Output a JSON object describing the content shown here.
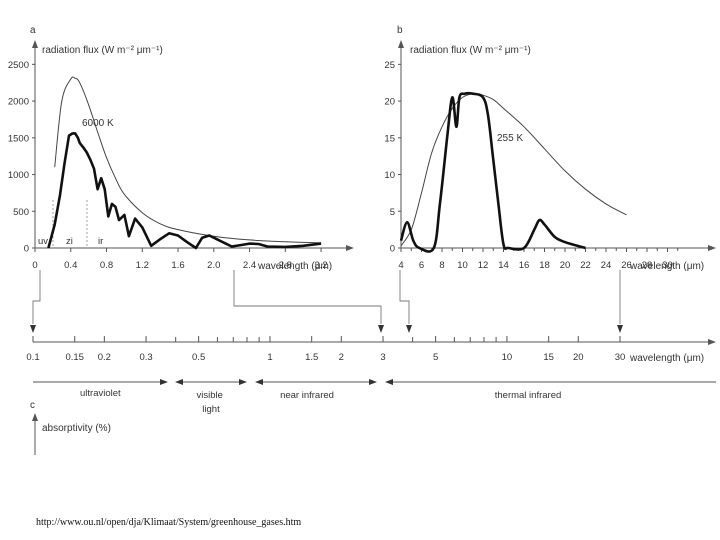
{
  "source_url": "http://www.ou.nl/open/dja/Klimaat/System/greenhouse_gases.htm",
  "chart_data": [
    {
      "panel": "a",
      "type": "line",
      "title": "radiation flux (W m⁻² μm⁻¹)",
      "xlabel": "wavelength (μm)",
      "xlim": [
        0,
        3.3
      ],
      "ylim": [
        0,
        2600
      ],
      "x_ticks": [
        "0",
        "0.4",
        "0.8",
        "1.2",
        "1.6",
        "2.0",
        "2.4",
        "2.8",
        "3.2"
      ],
      "y_ticks": [
        "0",
        "500",
        "1000",
        "1500",
        "2000",
        "2500"
      ],
      "region_labels": [
        "uv",
        "zi",
        "ir"
      ],
      "series": [
        {
          "name": "6000 K",
          "style": "thin",
          "x": [
            0.22,
            0.3,
            0.4,
            0.45,
            0.5,
            0.6,
            0.7,
            0.8,
            0.9,
            1.0,
            1.2,
            1.4,
            1.6,
            2.0,
            2.4,
            2.8,
            3.2
          ],
          "values": [
            1100,
            2000,
            2300,
            2310,
            2250,
            1950,
            1580,
            1230,
            950,
            730,
            480,
            330,
            250,
            160,
            110,
            85,
            70
          ]
        },
        {
          "style": "thick",
          "x": [
            0.15,
            0.22,
            0.28,
            0.33,
            0.38,
            0.42,
            0.45,
            0.48,
            0.5,
            0.54,
            0.58,
            0.62,
            0.66,
            0.7,
            0.74,
            0.78,
            0.82,
            0.86,
            0.9,
            0.94,
            1.0,
            1.05,
            1.12,
            1.2,
            1.3,
            1.4,
            1.5,
            1.6,
            1.7,
            1.8,
            1.87,
            1.95,
            2.05,
            2.2,
            2.3,
            2.4,
            2.5,
            2.6,
            2.8,
            3.0,
            3.2
          ],
          "values": [
            0,
            320,
            720,
            1150,
            1530,
            1560,
            1560,
            1500,
            1430,
            1370,
            1300,
            1200,
            1080,
            800,
            950,
            800,
            430,
            600,
            560,
            380,
            450,
            160,
            400,
            280,
            30,
            120,
            200,
            170,
            80,
            0,
            140,
            170,
            110,
            20,
            40,
            60,
            55,
            20,
            15,
            30,
            60
          ]
        }
      ]
    },
    {
      "panel": "b",
      "type": "line",
      "title": "radiation flux (W m⁻² μm⁻¹)",
      "xlabel": "wavelength (μm)",
      "xlim": [
        4,
        32
      ],
      "ylim": [
        0,
        26
      ],
      "x_ticks": [
        "4",
        "6",
        "8",
        "10",
        "12",
        "14",
        "16",
        "18",
        "20",
        "22",
        "24",
        "26",
        "28",
        "30"
      ],
      "y_ticks": [
        "0",
        "5",
        "10",
        "15",
        "20",
        "25"
      ],
      "series": [
        {
          "name": "255 K",
          "style": "thin",
          "x": [
            4,
            5,
            6,
            7,
            8,
            9,
            10,
            11,
            12,
            13,
            14,
            16,
            18,
            20,
            22,
            24,
            26
          ],
          "values": [
            0.3,
            2.5,
            7.5,
            13,
            16.5,
            19,
            20.5,
            21,
            20.8,
            20.2,
            19,
            16.5,
            13.5,
            10.5,
            8,
            6,
            4.5
          ]
        },
        {
          "style": "thick",
          "x": [
            4,
            4.6,
            5.2,
            5.8,
            7.2,
            7.8,
            8.5,
            9,
            9.4,
            9.7,
            10.2,
            11,
            12,
            12.5,
            13,
            13.5,
            14,
            14.5,
            16,
            17,
            17.5,
            18,
            19,
            20,
            21.2,
            22
          ],
          "values": [
            1,
            3.5,
            1,
            0,
            0,
            6,
            15,
            20.5,
            16.5,
            20.5,
            21,
            21,
            20.5,
            18,
            12,
            6,
            0.5,
            0,
            0,
            2.5,
            3.8,
            3.2,
            1.5,
            0.8,
            0.3,
            0
          ]
        }
      ]
    },
    {
      "panel": "spectrum",
      "type": "scale",
      "xlabel": "wavelength (μm)",
      "x_ticks": [
        "0.1",
        "0.15",
        "0.2",
        "0.3",
        "0.5",
        "1",
        "1.5",
        "2",
        "3",
        "5",
        "10",
        "15",
        "20",
        "30"
      ],
      "regions": [
        {
          "name": "ultraviolet",
          "range": [
            0.1,
            0.4
          ]
        },
        {
          "name": "visible light",
          "range": [
            0.4,
            0.7
          ]
        },
        {
          "name": "near infrared",
          "range": [
            0.7,
            3
          ]
        },
        {
          "name": "thermal infrared",
          "range": [
            3,
            100
          ]
        }
      ]
    },
    {
      "panel": "c",
      "type": "line",
      "ylabel": "absorptivity (%)"
    }
  ]
}
